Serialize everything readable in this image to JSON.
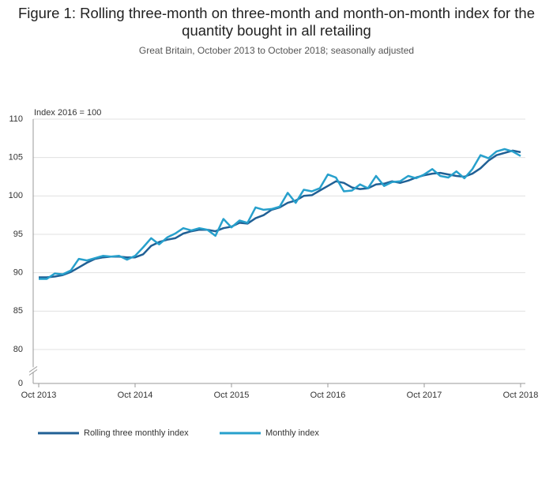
{
  "chart_data": {
    "type": "line",
    "title": "Figure 1: Rolling three-month on three-month and month-on-month index for the quantity bought in all retailing",
    "subtitle": "Great Britain, October 2013 to October 2018; seasonally adjusted",
    "y_label": "Index 2016 = 100",
    "categories": [
      "Oct 2013",
      null,
      null,
      null,
      null,
      null,
      null,
      null,
      null,
      null,
      null,
      null,
      "Oct 2014",
      null,
      null,
      null,
      null,
      null,
      null,
      null,
      null,
      null,
      null,
      null,
      "Oct 2015",
      null,
      null,
      null,
      null,
      null,
      null,
      null,
      null,
      null,
      null,
      null,
      "Oct 2016",
      null,
      null,
      null,
      null,
      null,
      null,
      null,
      null,
      null,
      null,
      null,
      "Oct 2017",
      null,
      null,
      null,
      null,
      null,
      null,
      null,
      null,
      null,
      null,
      null,
      "Oct 2018"
    ],
    "series": [
      {
        "name": "Rolling three monthly index",
        "color": "#206095",
        "values": [
          89.4,
          89.4,
          89.5,
          89.7,
          90.1,
          90.7,
          91.3,
          91.8,
          92.0,
          92.1,
          92.1,
          92.0,
          92.0,
          92.4,
          93.5,
          94.0,
          94.3,
          94.5,
          95.1,
          95.4,
          95.6,
          95.6,
          95.4,
          95.8,
          96.0,
          96.5,
          96.4,
          97.1,
          97.5,
          98.2,
          98.5,
          99.1,
          99.4,
          100.0,
          100.1,
          100.7,
          101.3,
          101.9,
          101.7,
          101.1,
          100.9,
          101.0,
          101.5,
          101.6,
          101.9,
          101.7,
          102.0,
          102.4,
          102.7,
          102.9,
          103.0,
          102.8,
          102.6,
          102.5,
          102.9,
          103.6,
          104.6,
          105.3,
          105.6,
          105.9,
          105.7
        ]
      },
      {
        "name": "Monthly index",
        "color": "#27a0cc",
        "values": [
          89.2,
          89.2,
          89.9,
          89.8,
          90.3,
          91.8,
          91.6,
          91.9,
          92.2,
          92.1,
          92.2,
          91.7,
          92.2,
          93.3,
          94.5,
          93.7,
          94.6,
          95.1,
          95.8,
          95.5,
          95.8,
          95.6,
          94.8,
          97.0,
          95.9,
          96.8,
          96.5,
          98.5,
          98.2,
          98.3,
          98.6,
          100.4,
          99.1,
          100.8,
          100.6,
          101.0,
          102.8,
          102.4,
          100.6,
          100.7,
          101.5,
          101.0,
          102.6,
          101.3,
          101.8,
          101.9,
          102.6,
          102.3,
          102.8,
          103.5,
          102.6,
          102.4,
          103.2,
          102.3,
          103.5,
          105.3,
          104.9,
          105.8,
          106.1,
          105.8,
          105.2
        ]
      }
    ],
    "ylim": [
      0,
      110
    ],
    "yticks": [
      0,
      80,
      85,
      90,
      95,
      100,
      105,
      110
    ],
    "axis_break": true,
    "grid": true,
    "legend": "bottom"
  }
}
